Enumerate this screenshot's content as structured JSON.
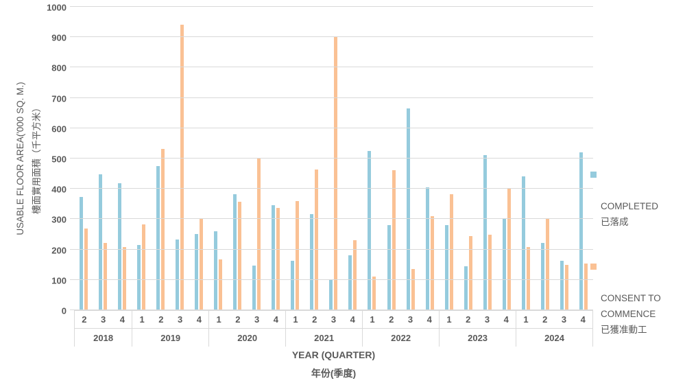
{
  "colors": {
    "text": "#595959",
    "gridline": "#D9D9D9",
    "background": "#FFFFFF"
  },
  "chart_data": {
    "type": "bar",
    "title": "",
    "grid": true,
    "legend_position": "right",
    "y_axis": {
      "min": 0,
      "max": 1000,
      "step": 100,
      "title_lines": [
        "USABLE FLOOR AREA('000 SQ. M.)",
        "樓面實用面積（千平方米）"
      ]
    },
    "x_axis": {
      "title_en": "YEAR (QUARTER)",
      "title_zh": "年份(季度)"
    },
    "groups": [
      {
        "year": "2018",
        "quarters": [
          "2",
          "3",
          "4"
        ]
      },
      {
        "year": "2019",
        "quarters": [
          "1",
          "2",
          "3",
          "4"
        ]
      },
      {
        "year": "2020",
        "quarters": [
          "1",
          "2",
          "3",
          "4"
        ]
      },
      {
        "year": "2021",
        "quarters": [
          "1",
          "2",
          "3",
          "4"
        ]
      },
      {
        "year": "2022",
        "quarters": [
          "1",
          "2",
          "3",
          "4"
        ]
      },
      {
        "year": "2023",
        "quarters": [
          "1",
          "2",
          "3",
          "4"
        ]
      },
      {
        "year": "2024",
        "quarters": [
          "1",
          "2",
          "3",
          "4"
        ]
      }
    ],
    "series": [
      {
        "id": "completed",
        "name_lines": [
          "COMPLETED",
          "已落成"
        ],
        "color": "#95CBDD",
        "values": [
          370,
          445,
          417,
          213,
          474,
          230,
          250,
          257,
          380,
          144,
          345,
          160,
          315,
          100,
          179,
          523,
          278,
          663,
          403,
          278,
          143,
          510,
          301,
          440,
          220,
          160,
          518
        ]
      },
      {
        "id": "consent-to-commence",
        "name_lines": [
          "CONSENT TO",
          "COMMENCE",
          "已獲准動工"
        ],
        "color": "#FAC194",
        "values": [
          266,
          220,
          205,
          281,
          530,
          940,
          300,
          165,
          356,
          498,
          335,
          358,
          462,
          900,
          228,
          108,
          460,
          134,
          308,
          381,
          242,
          246,
          399,
          205,
          300,
          148,
          152
        ]
      }
    ]
  }
}
